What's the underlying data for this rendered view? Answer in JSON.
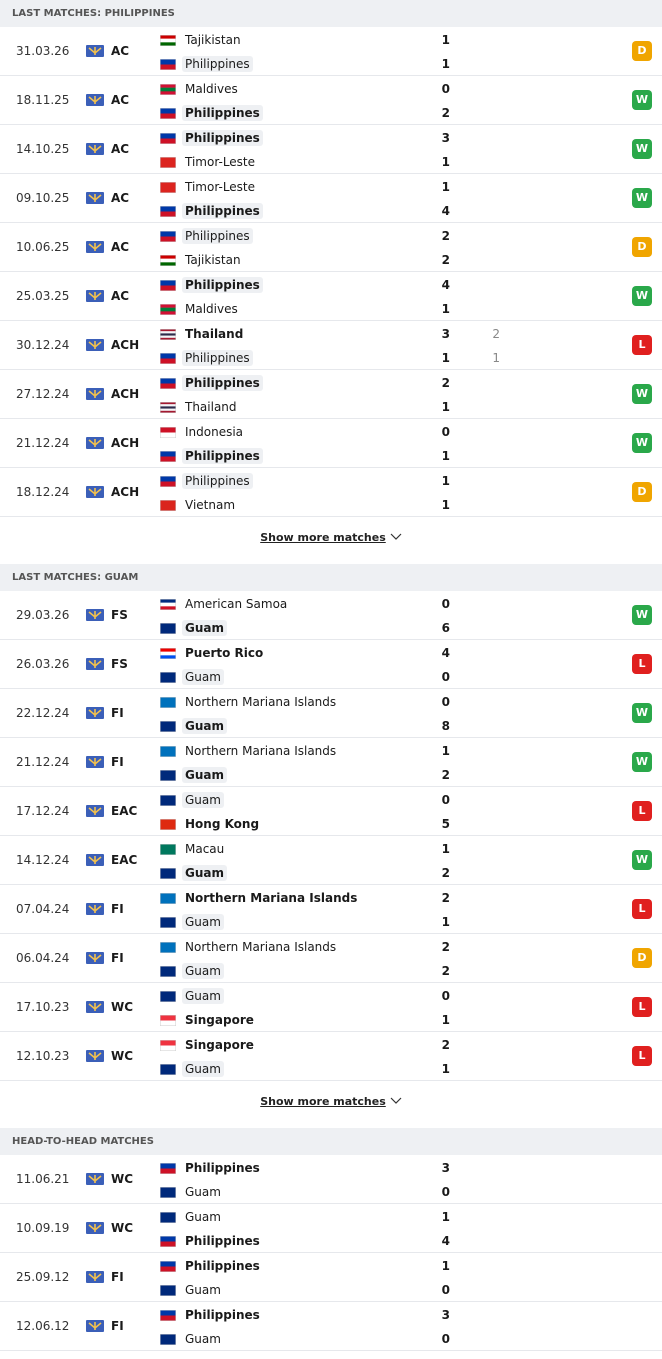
{
  "flags": {
    "Tajikistan": [
      "#cc0000",
      "#ffffff",
      "#006600"
    ],
    "Philippines": [
      "#0038a8",
      "#ce1126"
    ],
    "Maldives": [
      "#d21034",
      "#007e3a",
      "#d21034"
    ],
    "Timor-Leste": [
      "#dc241f"
    ],
    "Thailand": [
      "#a51931",
      "#f4f5f8",
      "#2d2a4a",
      "#f4f5f8",
      "#a51931"
    ],
    "Indonesia": [
      "#ce1126",
      "#ffffff"
    ],
    "Vietnam": [
      "#da251d"
    ],
    "American Samoa": [
      "#002b7f",
      "#ffffff",
      "#ce1126"
    ],
    "Guam": [
      "#00297b"
    ],
    "Puerto Rico": [
      "#ed0000",
      "#ffffff",
      "#0050f0"
    ],
    "Northern Mariana Islands": [
      "#0071bc"
    ],
    "Hong Kong": [
      "#de2910"
    ],
    "Macau": [
      "#00785e"
    ],
    "Singapore": [
      "#ef3340",
      "#ffffff"
    ]
  },
  "result_colors": {
    "W": "#2aa84a",
    "D": "#f0a500",
    "L": "#e0201f"
  },
  "sections": [
    {
      "title": "LAST MATCHES: PHILIPPINES",
      "more": "Show more matches",
      "matches": [
        {
          "date": "31.03.26",
          "comp": "AC",
          "result": "D",
          "home": {
            "name": "Tajikistan",
            "score": 1
          },
          "away": {
            "name": "Philippines",
            "score": 1,
            "highlight": true
          }
        },
        {
          "date": "18.11.25",
          "comp": "AC",
          "result": "W",
          "home": {
            "name": "Maldives",
            "score": 0
          },
          "away": {
            "name": "Philippines",
            "score": 2,
            "highlight": true
          }
        },
        {
          "date": "14.10.25",
          "comp": "AC",
          "result": "W",
          "home": {
            "name": "Philippines",
            "score": 3,
            "highlight": true
          },
          "away": {
            "name": "Timor-Leste",
            "score": 1
          }
        },
        {
          "date": "09.10.25",
          "comp": "AC",
          "result": "W",
          "home": {
            "name": "Timor-Leste",
            "score": 1
          },
          "away": {
            "name": "Philippines",
            "score": 4,
            "highlight": true
          }
        },
        {
          "date": "10.06.25",
          "comp": "AC",
          "result": "D",
          "home": {
            "name": "Philippines",
            "score": 2,
            "highlight": true
          },
          "away": {
            "name": "Tajikistan",
            "score": 2
          }
        },
        {
          "date": "25.03.25",
          "comp": "AC",
          "result": "W",
          "home": {
            "name": "Philippines",
            "score": 4,
            "highlight": true
          },
          "away": {
            "name": "Maldives",
            "score": 1
          }
        },
        {
          "date": "30.12.24",
          "comp": "ACH",
          "result": "L",
          "home": {
            "name": "Thailand",
            "score": 3,
            "ht": 2
          },
          "away": {
            "name": "Philippines",
            "score": 1,
            "ht": 1,
            "highlight": true
          }
        },
        {
          "date": "27.12.24",
          "comp": "ACH",
          "result": "W",
          "home": {
            "name": "Philippines",
            "score": 2,
            "highlight": true
          },
          "away": {
            "name": "Thailand",
            "score": 1
          }
        },
        {
          "date": "21.12.24",
          "comp": "ACH",
          "result": "W",
          "home": {
            "name": "Indonesia",
            "score": 0
          },
          "away": {
            "name": "Philippines",
            "score": 1,
            "highlight": true
          }
        },
        {
          "date": "18.12.24",
          "comp": "ACH",
          "result": "D",
          "home": {
            "name": "Philippines",
            "score": 1,
            "highlight": true
          },
          "away": {
            "name": "Vietnam",
            "score": 1
          }
        }
      ]
    },
    {
      "title": "LAST MATCHES: GUAM",
      "more": "Show more matches",
      "matches": [
        {
          "date": "29.03.26",
          "comp": "FS",
          "result": "W",
          "home": {
            "name": "American Samoa",
            "score": 0
          },
          "away": {
            "name": "Guam",
            "score": 6,
            "highlight": true
          }
        },
        {
          "date": "26.03.26",
          "comp": "FS",
          "result": "L",
          "home": {
            "name": "Puerto Rico",
            "score": 4
          },
          "away": {
            "name": "Guam",
            "score": 0,
            "highlight": true
          }
        },
        {
          "date": "22.12.24",
          "comp": "FI",
          "result": "W",
          "home": {
            "name": "Northern Mariana Islands",
            "score": 0
          },
          "away": {
            "name": "Guam",
            "score": 8,
            "highlight": true
          }
        },
        {
          "date": "21.12.24",
          "comp": "FI",
          "result": "W",
          "home": {
            "name": "Northern Mariana Islands",
            "score": 1
          },
          "away": {
            "name": "Guam",
            "score": 2,
            "highlight": true
          }
        },
        {
          "date": "17.12.24",
          "comp": "EAC",
          "result": "L",
          "home": {
            "name": "Guam",
            "score": 0,
            "highlight": true
          },
          "away": {
            "name": "Hong Kong",
            "score": 5
          }
        },
        {
          "date": "14.12.24",
          "comp": "EAC",
          "result": "W",
          "home": {
            "name": "Macau",
            "score": 1
          },
          "away": {
            "name": "Guam",
            "score": 2,
            "highlight": true
          }
        },
        {
          "date": "07.04.24",
          "comp": "FI",
          "result": "L",
          "home": {
            "name": "Northern Mariana Islands",
            "score": 2
          },
          "away": {
            "name": "Guam",
            "score": 1,
            "highlight": true
          }
        },
        {
          "date": "06.04.24",
          "comp": "FI",
          "result": "D",
          "home": {
            "name": "Northern Mariana Islands",
            "score": 2
          },
          "away": {
            "name": "Guam",
            "score": 2,
            "highlight": true
          }
        },
        {
          "date": "17.10.23",
          "comp": "WC",
          "result": "L",
          "home": {
            "name": "Guam",
            "score": 0,
            "highlight": true
          },
          "away": {
            "name": "Singapore",
            "score": 1
          }
        },
        {
          "date": "12.10.23",
          "comp": "WC",
          "result": "L",
          "home": {
            "name": "Singapore",
            "score": 2
          },
          "away": {
            "name": "Guam",
            "score": 1,
            "highlight": true
          }
        }
      ]
    },
    {
      "title": "HEAD-TO-HEAD MATCHES",
      "matches": [
        {
          "date": "11.06.21",
          "comp": "WC",
          "home": {
            "name": "Philippines",
            "score": 3
          },
          "away": {
            "name": "Guam",
            "score": 0
          }
        },
        {
          "date": "10.09.19",
          "comp": "WC",
          "home": {
            "name": "Guam",
            "score": 1
          },
          "away": {
            "name": "Philippines",
            "score": 4
          }
        },
        {
          "date": "25.09.12",
          "comp": "FI",
          "home": {
            "name": "Philippines",
            "score": 1
          },
          "away": {
            "name": "Guam",
            "score": 0
          }
        },
        {
          "date": "12.06.12",
          "comp": "FI",
          "home": {
            "name": "Philippines",
            "score": 3
          },
          "away": {
            "name": "Guam",
            "score": 0
          }
        }
      ]
    }
  ]
}
